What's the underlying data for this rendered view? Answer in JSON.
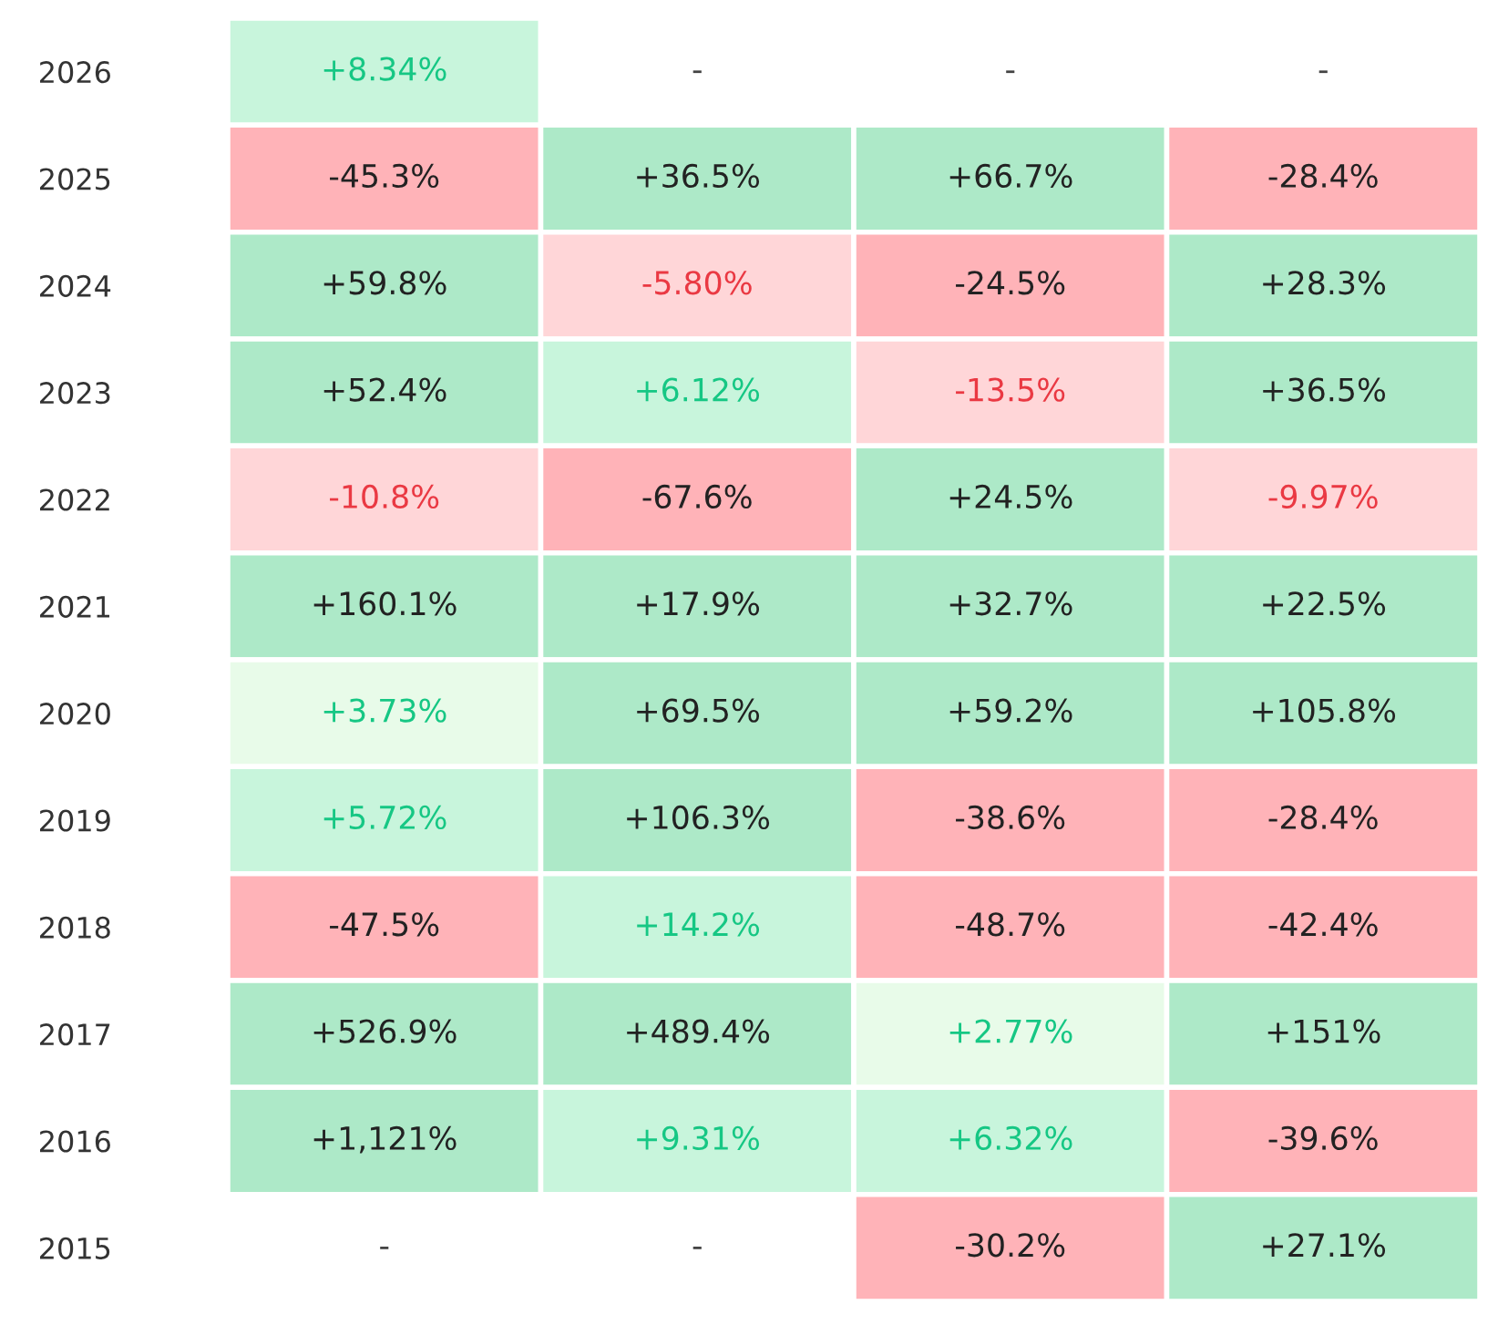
{
  "chart_data": {
    "type": "heatmap",
    "categories": [
      null,
      null,
      null,
      null
    ],
    "y_categories": [
      "2026",
      "2025",
      "2024",
      "2023",
      "2022",
      "2021",
      "2020",
      "2019",
      "2018",
      "2017",
      "2016",
      "2015"
    ],
    "cells": [
      [
        8.34,
        null,
        null,
        null
      ],
      [
        -45.3,
        36.5,
        66.7,
        -28.4
      ],
      [
        59.8,
        -5.8,
        -24.5,
        28.3
      ],
      [
        52.4,
        6.12,
        -13.5,
        36.5
      ],
      [
        -10.8,
        -67.6,
        24.5,
        -9.97
      ],
      [
        160.1,
        17.9,
        32.7,
        22.5
      ],
      [
        3.73,
        69.5,
        59.2,
        105.8
      ],
      [
        5.72,
        106.3,
        -38.6,
        -28.4
      ],
      [
        -47.5,
        14.2,
        -48.7,
        -42.4
      ],
      [
        526.9,
        489.4,
        2.77,
        151
      ],
      [
        1121,
        9.31,
        6.32,
        -39.6
      ],
      [
        null,
        null,
        -30.2,
        27.1
      ]
    ],
    "cell_labels": [
      [
        "+8.34%",
        "-",
        "-",
        "-"
      ],
      [
        "-45.3%",
        "+36.5%",
        "+66.7%",
        "-28.4%"
      ],
      [
        "+59.8%",
        "-5.80%",
        "-24.5%",
        "+28.3%"
      ],
      [
        "+52.4%",
        "+6.12%",
        "-13.5%",
        "+36.5%"
      ],
      [
        "-10.8%",
        "-67.6%",
        "+24.5%",
        "-9.97%"
      ],
      [
        "+160.1%",
        "+17.9%",
        "+32.7%",
        "+22.5%"
      ],
      [
        "+3.73%",
        "+69.5%",
        "+59.2%",
        "+105.8%"
      ],
      [
        "+5.72%",
        "+106.3%",
        "-38.6%",
        "-28.4%"
      ],
      [
        "-47.5%",
        "+14.2%",
        "-48.7%",
        "-42.4%"
      ],
      [
        "+526.9%",
        "+489.4%",
        "+2.77%",
        "+151%"
      ],
      [
        "+1,121%",
        "+9.31%",
        "+6.32%",
        "-39.6%"
      ],
      [
        "-",
        "-",
        "-30.2%",
        "+27.1%"
      ]
    ]
  }
}
